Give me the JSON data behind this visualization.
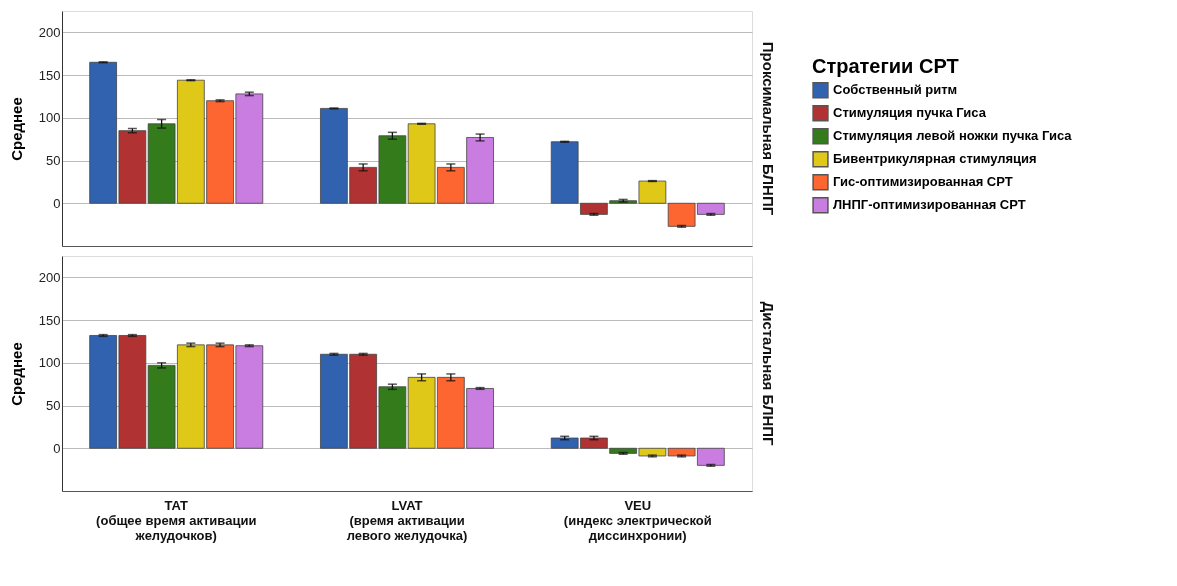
{
  "chart_data": [
    {
      "type": "bar",
      "title": "Проксимальная БЛНПГ",
      "ylabel": "Среднее",
      "legend_title": "Стратегии СРТ",
      "legend": "right",
      "grid": "y",
      "tick_labels": "y",
      "categories": [
        null,
        null,
        null
      ],
      "ylim": [
        -50,
        225
      ],
      "yticks": [
        0,
        50,
        100,
        150,
        200
      ],
      "series": [
        {
          "name": "Собственный ритм",
          "color": "#3162b0",
          "values": [
            165,
            111,
            72
          ],
          "errors": [
            0.5,
            0.5,
            0.5
          ]
        },
        {
          "name": "Стимуляция пучка Гиса",
          "color": "#b03232",
          "values": [
            85,
            42,
            -13
          ],
          "errors": [
            2.5,
            4,
            1
          ]
        },
        {
          "name": "Стимуляция левой ножки пучка Гиса",
          "color": "#347b1c",
          "values": [
            93,
            79,
            3
          ],
          "errors": [
            5,
            4,
            1.5
          ]
        },
        {
          "name": "Бивентрикулярная стимуляция",
          "color": "#e0c818",
          "values": [
            144,
            93,
            26
          ],
          "errors": [
            0.5,
            0.5,
            0.5
          ]
        },
        {
          "name": "Гис-оптимизированная СРТ",
          "color": "#fd6531",
          "values": [
            120,
            42,
            -27
          ],
          "errors": [
            1,
            4,
            1
          ]
        },
        {
          "name": "ЛНПГ-оптимизированная СРТ",
          "color": "#c97de0",
          "values": [
            128,
            77,
            -13
          ],
          "errors": [
            2,
            4,
            1
          ]
        }
      ]
    },
    {
      "type": "bar",
      "title": "Дистальная БЛНПГ",
      "ylabel": "Среднее",
      "legend": false,
      "grid": "y",
      "categories": [
        "TAT\n(общее время активации\nжелудочков)",
        "LVAT\n(время активации\nлевого желудочка)",
        "VEU\n(индекс электрической\nдиссинхронии)"
      ],
      "ylim": [
        -50,
        225
      ],
      "yticks": [
        0,
        50,
        100,
        150,
        200
      ],
      "series": [
        {
          "name": "Собственный ритм",
          "color": "#3162b0",
          "values": [
            132,
            110,
            12
          ],
          "errors": [
            1,
            1,
            2
          ]
        },
        {
          "name": "Стимуляция пучка Гиса",
          "color": "#b03232",
          "values": [
            132,
            110,
            12
          ],
          "errors": [
            1,
            1,
            2
          ]
        },
        {
          "name": "Стимуляция левой ножки пучка Гиса",
          "color": "#347b1c",
          "values": [
            97,
            72,
            -6
          ],
          "errors": [
            3,
            3,
            1
          ]
        },
        {
          "name": "Бивентрикулярная стимуляция",
          "color": "#e0c818",
          "values": [
            121,
            83,
            -9
          ],
          "errors": [
            2,
            4,
            1
          ]
        },
        {
          "name": "Гис-оптимизированная СРТ",
          "color": "#fd6531",
          "values": [
            121,
            83,
            -9
          ],
          "errors": [
            2,
            4,
            1
          ]
        },
        {
          "name": "ЛНПГ-оптимизированная СРТ",
          "color": "#c97de0",
          "values": [
            120,
            70,
            -20
          ],
          "errors": [
            1,
            1,
            1
          ]
        }
      ]
    }
  ]
}
